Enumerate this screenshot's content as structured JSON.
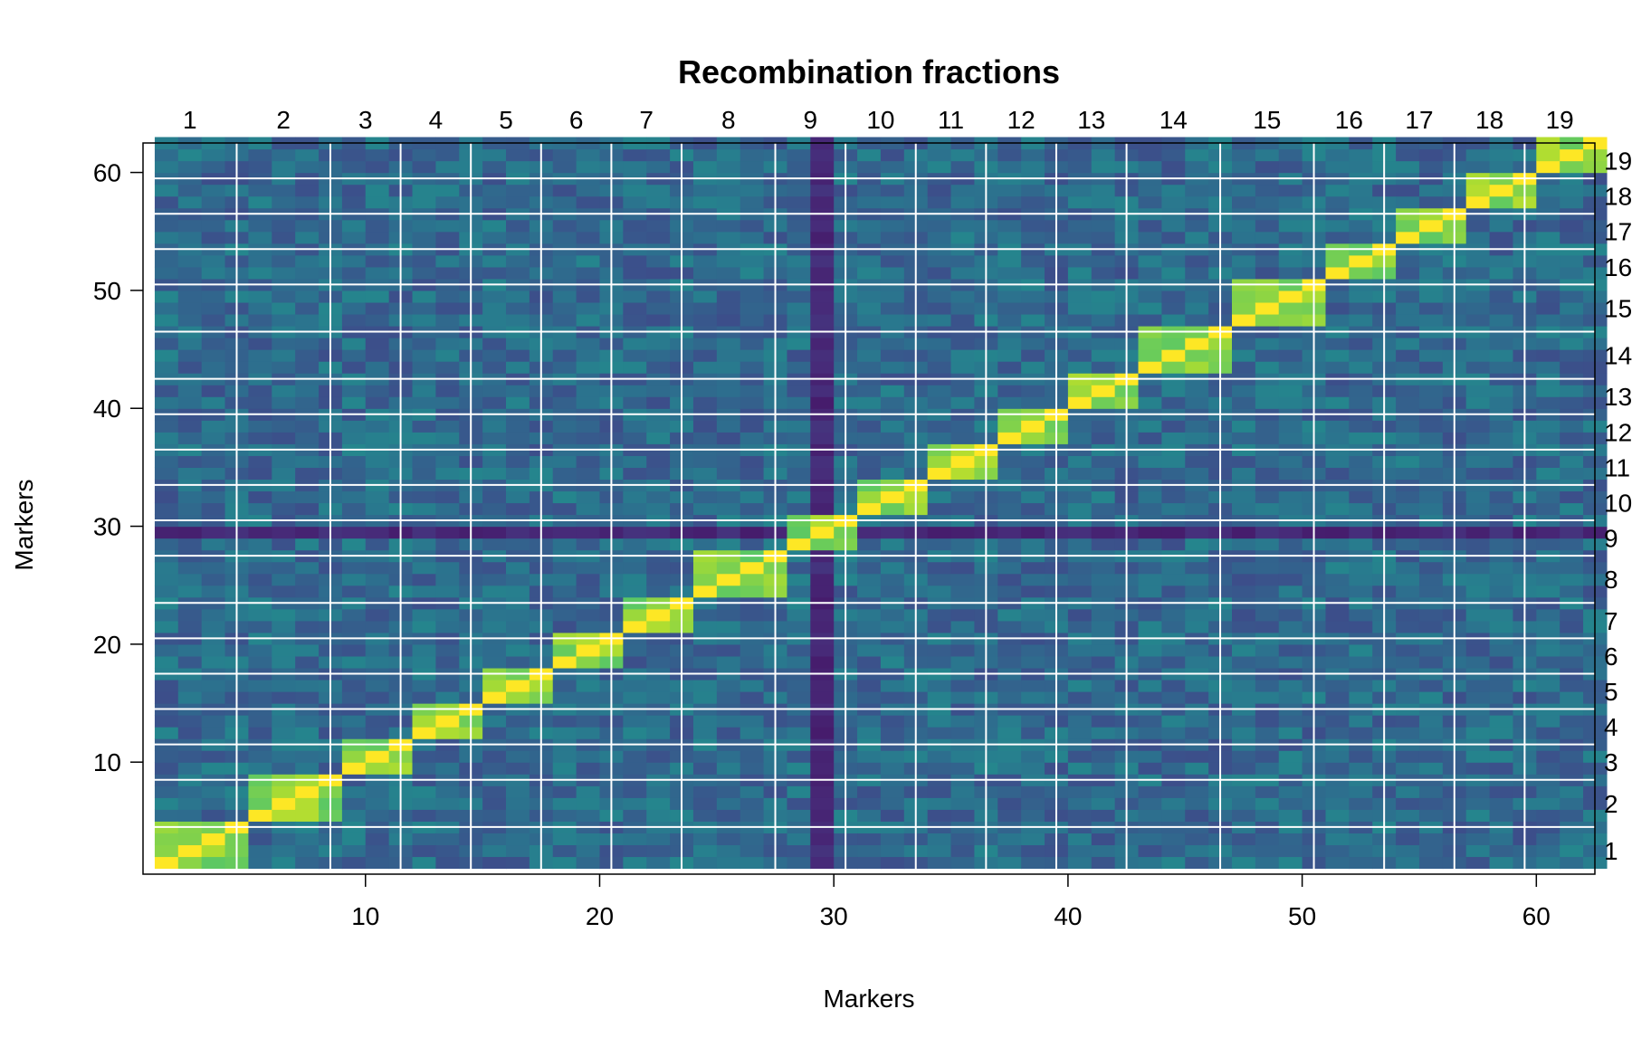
{
  "chart_data": {
    "type": "heatmap",
    "title": "Recombination fractions",
    "xlabel": "Markers",
    "ylabel": "Markers",
    "n_markers": 62,
    "x_ticks": [
      10,
      20,
      30,
      40,
      50,
      60
    ],
    "y_ticks": [
      10,
      20,
      30,
      40,
      50,
      60
    ],
    "xlim": [
      0.5,
      62.5
    ],
    "ylim": [
      0.5,
      62.5
    ],
    "grid": "white separators between linkage groups",
    "colorscale": "viridis",
    "linkage_groups": [
      {
        "label": "1",
        "start": 1,
        "end": 4
      },
      {
        "label": "2",
        "start": 5,
        "end": 8
      },
      {
        "label": "3",
        "start": 9,
        "end": 11
      },
      {
        "label": "4",
        "start": 12,
        "end": 14
      },
      {
        "label": "5",
        "start": 15,
        "end": 17
      },
      {
        "label": "6",
        "start": 18,
        "end": 20
      },
      {
        "label": "7",
        "start": 21,
        "end": 23
      },
      {
        "label": "8",
        "start": 24,
        "end": 27
      },
      {
        "label": "9",
        "start": 28,
        "end": 30
      },
      {
        "label": "10",
        "start": 31,
        "end": 33
      },
      {
        "label": "11",
        "start": 34,
        "end": 36
      },
      {
        "label": "12",
        "start": 37,
        "end": 39
      },
      {
        "label": "13",
        "start": 40,
        "end": 42
      },
      {
        "label": "14",
        "start": 43,
        "end": 46
      },
      {
        "label": "15",
        "start": 47,
        "end": 50
      },
      {
        "label": "16",
        "start": 51,
        "end": 53
      },
      {
        "label": "17",
        "start": 54,
        "end": 56
      },
      {
        "label": "18",
        "start": 57,
        "end": 59
      },
      {
        "label": "19",
        "start": 60,
        "end": 62
      }
    ],
    "color_levels": {
      "diagonal": 1.0,
      "within_group": 0.82,
      "background": 0.35,
      "low_row_col": 0.12,
      "low_marker": 29
    },
    "colors": {
      "background": "#ffffff",
      "separator": "#ffffff",
      "frame": "#000000"
    }
  }
}
